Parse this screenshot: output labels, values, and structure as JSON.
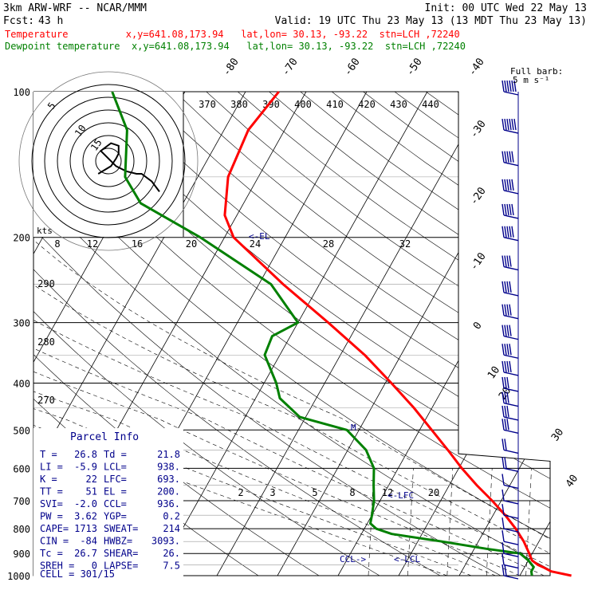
{
  "header": {
    "model": "3km ARW-WRF -- NCAR/MMM",
    "init": "Init: 00 UTC Wed 22 May 13",
    "fcst_label": "Fcst:",
    "fcst_value": "43 h",
    "valid": "Valid: 19 UTC Thu 23 May 13 (13 MDT Thu 23 May 13)",
    "temp_line": "Temperature          x,y=641.08,173.94   lat,lon= 30.13, -93.22  stn=LCH ,72240",
    "dew_line": "Dewpoint temperature  x,y=641.08,173.94   lat,lon= 30.13, -93.22  stn=LCH ,72240"
  },
  "colors": {
    "temperature": "#ff0000",
    "dewpoint": "#008000",
    "barbs": "#00008b",
    "frame": "#000000"
  },
  "wind_label": {
    "line1": "Full barb:",
    "line2": "5 m s⁻¹"
  },
  "hodograph": {
    "units": "kts",
    "ring_labels": [
      "5",
      "10",
      "15"
    ]
  },
  "parcel_info": {
    "title": "Parcel Info",
    "rows": [
      [
        "T  =",
        "26.8",
        "Td =",
        "21.8"
      ],
      [
        "LI =",
        "-5.9",
        "LCL=",
        "938."
      ],
      [
        "K  =",
        "22",
        "LFC=",
        "693."
      ],
      [
        "TT =",
        "51",
        "EL =",
        "200."
      ],
      [
        "SVI=",
        "-2.0",
        "CCL=",
        "936."
      ],
      [
        "PW =",
        "3.62",
        "YGP=",
        "0.2"
      ],
      [
        "CAPE=",
        "1713",
        "SWEAT=",
        "214"
      ],
      [
        "CIN =",
        "-84",
        "HWBZ=",
        "3093."
      ],
      [
        "Tc =",
        "26.7",
        "SHEAR=",
        "26."
      ],
      [
        "SREH =",
        "0",
        "LAPSE=",
        "7.5"
      ]
    ],
    "cell": "CELL = 301/15"
  },
  "level_markers": {
    "lcl": "<-LCL",
    "lfc": "<-LFC",
    "el": "<-EL",
    "ccl": "CCL->",
    "mark": "M"
  },
  "chart_data": {
    "type": "line",
    "title": "",
    "y_axis": {
      "label": "",
      "scale": "log-pressure",
      "unit": "hPa",
      "ylim": [
        1000,
        100
      ],
      "ticks": [
        100,
        200,
        300,
        400,
        500,
        600,
        700,
        800,
        900,
        1000
      ]
    },
    "isotherm_labels": [
      -80,
      -70,
      -60,
      -50,
      -40,
      -30,
      -20,
      -10,
      0,
      10,
      20,
      30,
      40
    ],
    "theta_labels": [
      370,
      380,
      390,
      400,
      410,
      420,
      430,
      440,
      290,
      280,
      270
    ],
    "mixing_ratio_labels": [
      2,
      3,
      5,
      8,
      12,
      20
    ],
    "speed_ring_labels": [
      8,
      12,
      16,
      20,
      24,
      28,
      32
    ],
    "series": [
      {
        "name": "Temperature",
        "color": "#ff0000",
        "p": [
          1000,
          980,
          960,
          950,
          930,
          900,
          850,
          800,
          750,
          700,
          650,
          600,
          550,
          500,
          450,
          400,
          350,
          300,
          250,
          200,
          180,
          150,
          120,
          100
        ],
        "t": [
          28.5,
          24.8,
          23.0,
          22.0,
          20.6,
          19.5,
          17.5,
          15.0,
          12.0,
          8.5,
          4.5,
          0.5,
          -3.5,
          -8.0,
          -13.0,
          -19.0,
          -26.0,
          -35.0,
          -46.0,
          -58.5,
          -62.0,
          -65.0,
          -66.0,
          -64.5
        ]
      },
      {
        "name": "Dewpoint temperature",
        "color": "#008000",
        "p": [
          1000,
          980,
          960,
          950,
          930,
          900,
          880,
          850,
          820,
          800,
          780,
          750,
          700,
          650,
          600,
          550,
          500,
          470,
          430,
          400,
          350,
          320,
          300,
          250,
          200,
          170,
          150,
          120,
          100
        ],
        "t": [
          22.0,
          21.5,
          21.5,
          21.0,
          20.0,
          18.0,
          12.0,
          4.0,
          -5.0,
          -8.0,
          -9.5,
          -10.0,
          -11.0,
          -12.5,
          -14.0,
          -17.0,
          -22.0,
          -31.0,
          -36.0,
          -38.0,
          -42.5,
          -43.0,
          -40.0,
          -48.0,
          -64.0,
          -77.0,
          -82.0,
          -86.0,
          -92.0
        ]
      }
    ],
    "wind_barbs": {
      "p": [
        100,
        120,
        140,
        160,
        180,
        200,
        230,
        260,
        290,
        320,
        350,
        380,
        410,
        440,
        470,
        500,
        550,
        600,
        650,
        700,
        750,
        800,
        850,
        900,
        950,
        1000
      ],
      "speed_kts": [
        60,
        60,
        55,
        55,
        50,
        50,
        45,
        45,
        45,
        40,
        40,
        40,
        35,
        35,
        35,
        30,
        25,
        20,
        15,
        10,
        10,
        10,
        10,
        10,
        15,
        20
      ]
    },
    "hodograph_trace": {
      "u_kts": [
        -4,
        1,
        3,
        4,
        4,
        1,
        -3,
        3,
        7,
        11,
        13,
        17,
        20
      ],
      "v_kts": [
        -5,
        -2,
        1,
        3,
        6,
        7,
        4,
        -2,
        -4,
        -5,
        -5,
        -8,
        -12
      ]
    }
  }
}
